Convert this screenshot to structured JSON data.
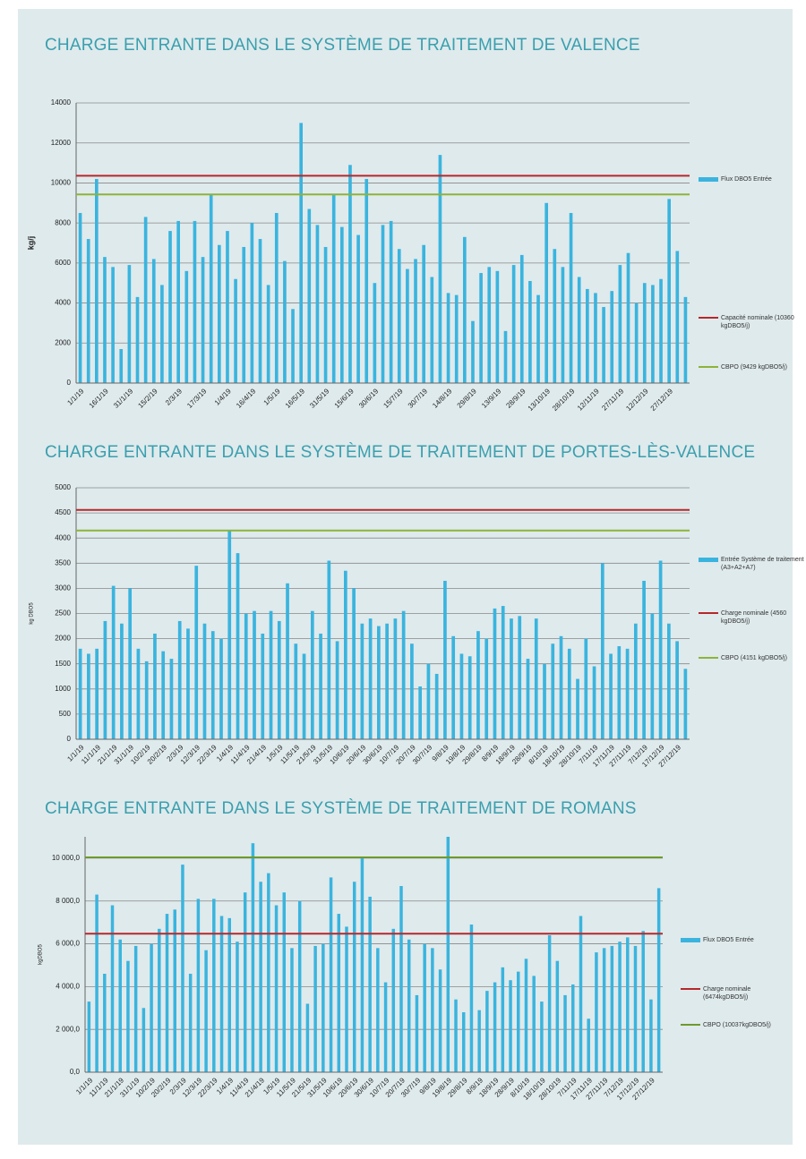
{
  "chart_data": [
    {
      "type": "bar",
      "title": "CHARGE ENTRANTE DANS LE SYSTÈME DE TRAITEMENT DE VALENCE",
      "y_label": "kg/j",
      "categories": [
        "1/1/19",
        null,
        null,
        "16/1/19",
        null,
        null,
        "31/1/19",
        null,
        null,
        "15/2/19",
        null,
        null,
        "2/3/19",
        null,
        null,
        "17/3/19",
        null,
        null,
        "1/4/19",
        null,
        null,
        "16/4/19",
        null,
        null,
        "1/5/19",
        null,
        null,
        "16/5/19",
        null,
        null,
        "31/5/19",
        null,
        null,
        "15/6/19",
        null,
        null,
        "30/6/19",
        null,
        null,
        "15/7/19",
        null,
        null,
        "30/7/19",
        null,
        null,
        "14/8/19",
        null,
        null,
        "29/8/19",
        null,
        null,
        "13/9/19",
        null,
        null,
        "28/9/19",
        null,
        null,
        "13/10/19",
        null,
        null,
        "28/10/19",
        null,
        null,
        "12/11/19",
        null,
        null,
        "27/11/19",
        null,
        null,
        "12/12/19",
        null,
        null,
        "27/12/19",
        null,
        null
      ],
      "series": [
        {
          "name": "Flux DBO5 Entrée",
          "color": "#3ab4de",
          "values": [
            8500,
            7200,
            10200,
            6300,
            5800,
            1700,
            5900,
            4300,
            8300,
            6200,
            4900,
            7600,
            8100,
            5600,
            8100,
            6300,
            9400,
            6900,
            7600,
            5200,
            6800,
            8000,
            7200,
            4900,
            8500,
            6100,
            3700,
            13000,
            8700,
            7900,
            6800,
            9400,
            7800,
            10900,
            7400,
            10200,
            5000,
            7900,
            8100,
            6700,
            5700,
            6200,
            6900,
            5300,
            11400,
            4500,
            4400,
            7300,
            3100,
            5500,
            5800,
            5600,
            2600,
            5900,
            6400,
            5100,
            4400,
            9000,
            6700,
            5800,
            8500,
            5300,
            4700,
            4500,
            3800,
            4600,
            5900,
            6500,
            4000,
            5000,
            4900,
            5200,
            9200,
            6600,
            4300
          ]
        }
      ],
      "lines": [
        {
          "name": "Capacité nominale (10360 kgDBO5/j)",
          "color": "#b5282b",
          "value": 10360
        },
        {
          "name": "CBPO (9429 kgDBO5/j)",
          "color": "#8db33a",
          "value": 9429
        }
      ],
      "ylim": [
        0,
        14000
      ],
      "yticks": [
        0,
        2000,
        4000,
        6000,
        8000,
        10000,
        12000,
        14000
      ],
      "grid": true
    },
    {
      "type": "bar",
      "title": "CHARGE ENTRANTE DANS LE SYSTÈME DE TRAITEMENT DE PORTES-LÈS-VALENCE",
      "y_label": "kg DBO5",
      "categories": [
        "1/1/19",
        null,
        "11/1/19",
        null,
        "21/1/19",
        null,
        "31/1/19",
        null,
        "10/2/19",
        null,
        "20/2/19",
        null,
        "2/3/19",
        null,
        "12/3/19",
        null,
        "22/3/19",
        null,
        "1/4/19",
        null,
        "11/4/19",
        null,
        "21/4/19",
        null,
        "1/5/19",
        null,
        "11/5/19",
        null,
        "21/5/19",
        null,
        "31/5/19",
        null,
        "10/6/19",
        null,
        "20/6/19",
        null,
        "30/6/19",
        null,
        "10/7/19",
        null,
        "20/7/19",
        null,
        "30/7/19",
        null,
        "9/8/19",
        null,
        "19/8/19",
        null,
        "29/8/19",
        null,
        "8/9/19",
        null,
        "18/9/19",
        null,
        "28/9/19",
        null,
        "8/10/19",
        null,
        "18/10/19",
        null,
        "28/10/19",
        null,
        "7/11/19",
        null,
        "17/11/19",
        null,
        "27/11/19",
        null,
        "7/12/19",
        null,
        "17/12/19",
        null,
        "27/12/19",
        null
      ],
      "series": [
        {
          "name": "Entrée Système de traitement (A3+A2+A7)",
          "color": "#3ab4de",
          "values": [
            1800,
            1700,
            1800,
            2350,
            3050,
            2300,
            3000,
            1800,
            1550,
            2100,
            1750,
            1600,
            2350,
            2200,
            3450,
            2300,
            2150,
            2000,
            4150,
            3700,
            2500,
            2550,
            2100,
            2550,
            2350,
            3100,
            1900,
            1700,
            2550,
            2100,
            3550,
            1950,
            3350,
            3000,
            2300,
            2400,
            2250,
            2300,
            2400,
            2550,
            1900,
            1050,
            1500,
            1300,
            3150,
            2050,
            1700,
            1650,
            2150,
            2000,
            2600,
            2650,
            2400,
            2450,
            1600,
            2400,
            1500,
            1900,
            2050,
            1800,
            1200,
            2000,
            1450,
            3500,
            1700,
            1850,
            1800,
            2300,
            3150,
            2500,
            3550,
            2300,
            1950,
            1400
          ]
        }
      ],
      "lines": [
        {
          "name": "Charge nominale (4560 kgDBO5/j)",
          "color": "#b5282b",
          "value": 4560
        },
        {
          "name": "CBPO (4151 kgDBO5/j)",
          "color": "#8db33a",
          "value": 4151
        }
      ],
      "ylim": [
        0,
        5000
      ],
      "yticks": [
        0,
        500,
        1000,
        1500,
        2000,
        2500,
        3000,
        3500,
        4000,
        4500,
        5000
      ],
      "grid": true
    },
    {
      "type": "bar",
      "title": "CHARGE ENTRANTE DANS LE SYSTÈME DE TRAITEMENT DE ROMANS",
      "y_label": "kgDBO5",
      "categories": [
        "1/1/19",
        null,
        "11/1/19",
        null,
        "21/1/19",
        null,
        "31/1/19",
        null,
        "10/2/19",
        null,
        "20/2/19",
        null,
        "2/3/19",
        null,
        "12/3/19",
        null,
        "22/3/19",
        null,
        "1/4/19",
        null,
        "11/4/19",
        null,
        "21/4/19",
        null,
        "1/5/19",
        null,
        "11/5/19",
        null,
        "21/5/19",
        null,
        "31/5/19",
        null,
        "10/6/19",
        null,
        "20/6/19",
        null,
        "30/6/19",
        null,
        "10/7/19",
        null,
        "20/7/19",
        null,
        "30/7/19",
        null,
        "9/8/19",
        null,
        "19/8/19",
        null,
        "29/8/19",
        null,
        "8/9/19",
        null,
        "18/9/19",
        null,
        "28/9/19",
        null,
        "8/10/19",
        null,
        "18/10/19",
        null,
        "28/10/19",
        null,
        "7/11/19",
        null,
        "17/11/19",
        null,
        "27/11/19",
        null,
        "7/12/19",
        null,
        "17/12/19",
        null,
        "27/12/19",
        null
      ],
      "series": [
        {
          "name": "Flux DBO5 Entrée",
          "color": "#3ab4de",
          "values": [
            3300,
            8300,
            4600,
            7800,
            6200,
            5200,
            5900,
            3000,
            6000,
            6700,
            7400,
            7600,
            9700,
            4600,
            8100,
            5700,
            8100,
            7300,
            7200,
            6100,
            8400,
            10700,
            8900,
            9300,
            7800,
            8400,
            5800,
            8000,
            3200,
            5900,
            6000,
            9100,
            7400,
            6800,
            8900,
            10000,
            8200,
            5800,
            4200,
            6700,
            8700,
            6200,
            3600,
            6000,
            5800,
            4800,
            11000,
            3400,
            2800,
            6900,
            2900,
            3800,
            4200,
            4900,
            4300,
            4700,
            5300,
            4500,
            3300,
            6400,
            5200,
            3600,
            4100,
            7300,
            2500,
            5600,
            5800,
            5900,
            6100,
            6300,
            5900,
            6600,
            3400,
            8600
          ]
        }
      ],
      "lines": [
        {
          "name": "Charge nominale (6474kgDBO5/j)",
          "color": "#b5282b",
          "value": 6474
        },
        {
          "name": "CBPO (10037kgDBO5/j)",
          "color": "#6e9a2a",
          "value": 10037
        }
      ],
      "ylim": [
        0,
        11000
      ],
      "yticks": [
        {
          "value": 0,
          "label": "0,0"
        },
        {
          "value": 2000,
          "label": "2 000,0"
        },
        {
          "value": 4000,
          "label": "4 000,0"
        },
        {
          "value": 6000,
          "label": "6 000,0"
        },
        {
          "value": 8000,
          "label": "8 000,0"
        },
        {
          "value": 10000,
          "label": "10 000,0"
        }
      ],
      "grid": true
    }
  ]
}
